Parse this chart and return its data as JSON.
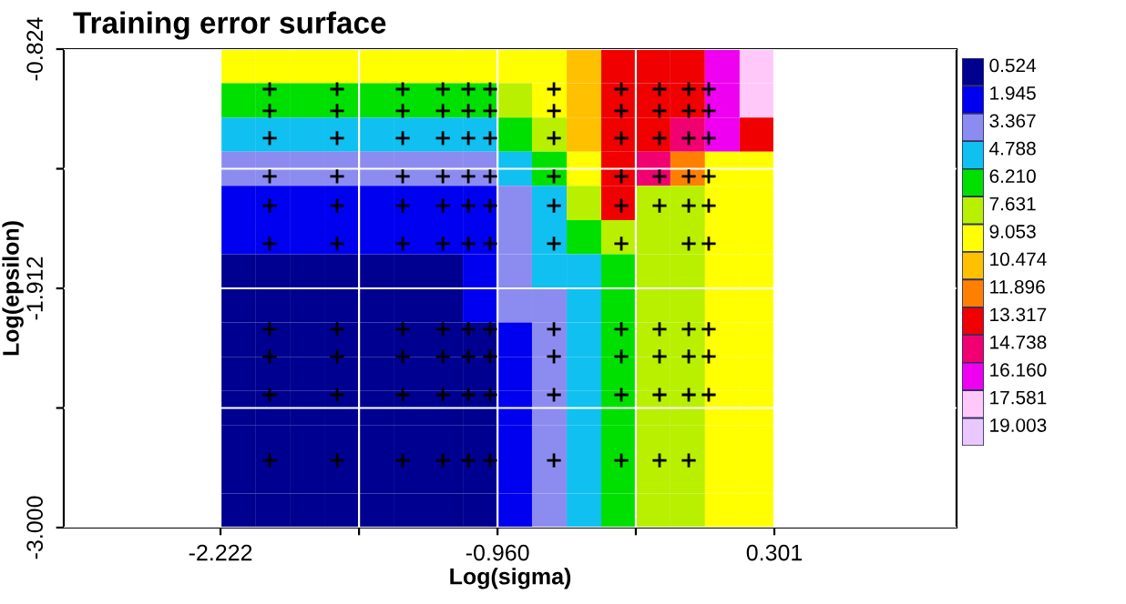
{
  "chart_data": {
    "type": "heatmap",
    "title": "Training error surface",
    "xlabel": "Log(sigma)",
    "ylabel": "Log(epsilon)",
    "x": [
      -2.143,
      -1.985,
      -1.828,
      -1.67,
      -1.512,
      -1.355,
      -1.197,
      -1.039,
      -0.882,
      -0.724,
      -0.566,
      -0.409,
      -0.251,
      -0.094,
      0.064,
      0.222
    ],
    "y": [
      -0.902,
      -1.057,
      -1.213,
      -1.368,
      -1.524,
      -1.679,
      -1.835,
      -1.99,
      -2.145,
      -2.301,
      -2.456,
      -2.612,
      -2.767,
      -2.922
    ],
    "cells": [
      [
        9.8,
        9.8,
        9.8,
        9.8,
        9.8,
        9.8,
        9.8,
        9.8,
        9.8,
        9.8,
        11.2,
        14.0,
        14.0,
        14.0,
        16.9,
        18.3
      ],
      [
        6.9,
        6.9,
        6.9,
        6.9,
        6.9,
        6.9,
        6.9,
        6.9,
        8.3,
        9.8,
        11.2,
        14.0,
        14.0,
        14.0,
        16.9,
        18.3
      ],
      [
        5.5,
        5.5,
        5.5,
        5.5,
        5.5,
        5.5,
        5.5,
        5.5,
        6.9,
        8.3,
        11.2,
        14.0,
        14.0,
        15.4,
        16.9,
        14.0
      ],
      [
        4.1,
        4.1,
        4.1,
        4.1,
        4.1,
        4.1,
        4.1,
        4.1,
        5.5,
        6.9,
        9.8,
        14.0,
        15.4,
        12.6,
        9.8,
        9.8
      ],
      [
        2.7,
        2.7,
        2.7,
        2.7,
        2.7,
        2.7,
        2.7,
        2.7,
        4.1,
        5.5,
        8.3,
        14.0,
        8.3,
        8.3,
        9.8,
        9.8
      ],
      [
        2.7,
        2.7,
        2.7,
        2.7,
        2.7,
        2.7,
        2.7,
        2.7,
        4.1,
        5.5,
        6.9,
        8.3,
        8.3,
        8.3,
        9.8,
        9.8
      ],
      [
        1.2,
        1.2,
        1.2,
        1.2,
        1.2,
        1.2,
        1.2,
        2.7,
        4.1,
        5.5,
        5.5,
        6.9,
        8.3,
        8.3,
        9.8,
        9.8
      ],
      [
        1.2,
        1.2,
        1.2,
        1.2,
        1.2,
        1.2,
        1.2,
        2.7,
        4.1,
        4.1,
        5.5,
        6.9,
        8.3,
        8.3,
        9.8,
        9.8
      ],
      [
        1.2,
        1.2,
        1.2,
        1.2,
        1.2,
        1.2,
        1.2,
        1.2,
        2.7,
        4.1,
        5.5,
        6.9,
        8.3,
        8.3,
        9.8,
        9.8
      ],
      [
        1.2,
        1.2,
        1.2,
        1.2,
        1.2,
        1.2,
        1.2,
        1.2,
        2.7,
        4.1,
        5.5,
        6.9,
        8.3,
        8.3,
        9.8,
        9.8
      ],
      [
        1.2,
        1.2,
        1.2,
        1.2,
        1.2,
        1.2,
        1.2,
        1.2,
        2.7,
        4.1,
        5.5,
        6.9,
        8.3,
        8.3,
        9.8,
        9.8
      ],
      [
        1.2,
        1.2,
        1.2,
        1.2,
        1.2,
        1.2,
        1.2,
        1.2,
        2.7,
        4.1,
        5.5,
        6.9,
        8.3,
        8.3,
        9.8,
        9.8
      ],
      [
        1.2,
        1.2,
        1.2,
        1.2,
        1.2,
        1.2,
        1.2,
        1.2,
        2.7,
        4.1,
        5.5,
        6.9,
        8.3,
        8.3,
        9.8,
        9.8
      ],
      [
        1.2,
        1.2,
        1.2,
        1.2,
        1.2,
        1.2,
        1.2,
        1.2,
        2.7,
        4.1,
        5.5,
        6.9,
        8.3,
        8.3,
        9.8,
        9.8
      ]
    ],
    "colors": [
      "#000090",
      "#0000f0",
      "#8c8cf0",
      "#10c0f0",
      "#00e000",
      "#b8f000",
      "#ffff00",
      "#ffc000",
      "#ff8000",
      "#f00000",
      "#f00070",
      "#f000f0",
      "#ffc8f8",
      "#e8c8ff"
    ],
    "clim": [
      0.524,
      20.424
    ],
    "cticks": [
      0.524,
      1.945,
      3.367,
      4.788,
      {
        "value": 6.21,
        "label": "6.210"
      },
      7.631,
      9.053,
      10.474,
      11.896,
      13.317,
      14.738,
      {
        "value": 16.16,
        "label": "16.160"
      },
      17.581,
      19.003
    ],
    "series": [
      {
        "type": "scatter",
        "color": "#000000",
        "x": [
          -1.998,
          -1.691,
          -1.392,
          -1.209,
          -1.093,
          -0.994,
          -0.703,
          -0.396,
          -0.222,
          -0.089,
          0.002,
          -1.998,
          -1.691,
          -1.392,
          -1.209,
          -1.093,
          -0.994,
          -0.703,
          -0.396,
          -0.222,
          -0.089,
          0.002,
          -1.998,
          -1.691,
          -1.392,
          -1.209,
          -1.093,
          -0.994,
          -0.703,
          -0.396,
          -0.222,
          -0.089,
          0.002,
          -1.998,
          -1.691,
          -1.392,
          -1.209,
          -1.093,
          -0.994,
          -0.703,
          -0.396,
          -0.222,
          -0.089,
          0.002,
          -1.998,
          -1.691,
          -1.392,
          -1.209,
          -1.093,
          -0.994,
          -0.703,
          -0.396,
          -0.222,
          -0.089,
          0.002,
          -1.998,
          -1.691,
          -1.392,
          -1.209,
          -1.093,
          -0.994,
          -0.703,
          -0.396,
          -0.089,
          0.002,
          -1.998,
          -1.691,
          -1.392,
          -1.209,
          -1.093,
          -0.994,
          -0.703,
          -0.396,
          -0.222,
          -0.089,
          0.002,
          -1.998,
          -1.691,
          -1.392,
          -1.209,
          -1.093,
          -0.994,
          -0.703,
          -0.396,
          -0.222,
          -0.089,
          0.002,
          -1.998,
          -1.691,
          -1.392,
          -1.209,
          -1.093,
          -0.994,
          -0.703,
          -0.396,
          -0.222,
          -0.089,
          0.002,
          -1.998,
          -1.691,
          -1.392,
          -1.209,
          -1.093,
          -0.994,
          -0.703,
          -0.396,
          -0.222,
          -0.089
        ],
        "values": [
          -1.006,
          -1.006,
          -1.006,
          -1.006,
          -1.006,
          -1.006,
          -1.006,
          -1.006,
          -1.006,
          -1.006,
          -1.006,
          -1.105,
          -1.105,
          -1.105,
          -1.105,
          -1.105,
          -1.105,
          -1.105,
          -1.105,
          -1.105,
          -1.105,
          -1.105,
          -1.229,
          -1.229,
          -1.229,
          -1.229,
          -1.229,
          -1.229,
          -1.229,
          -1.229,
          -1.229,
          -1.229,
          -1.229,
          -1.403,
          -1.403,
          -1.403,
          -1.403,
          -1.403,
          -1.403,
          -1.403,
          -1.403,
          -1.403,
          -1.403,
          -1.403,
          -1.536,
          -1.536,
          -1.536,
          -1.536,
          -1.536,
          -1.536,
          -1.536,
          -1.536,
          -1.536,
          -1.536,
          -1.536,
          -1.709,
          -1.709,
          -1.709,
          -1.709,
          -1.709,
          -1.709,
          -1.709,
          -1.709,
          -1.709,
          -1.709,
          -2.098,
          -2.098,
          -2.098,
          -2.098,
          -2.098,
          -2.098,
          -2.098,
          -2.098,
          -2.098,
          -2.098,
          -2.098,
          -2.222,
          -2.222,
          -2.222,
          -2.222,
          -2.222,
          -2.222,
          -2.222,
          -2.222,
          -2.222,
          -2.222,
          -2.222,
          -2.396,
          -2.396,
          -2.396,
          -2.396,
          -2.396,
          -2.396,
          -2.396,
          -2.396,
          -2.396,
          -2.396,
          -2.396,
          -2.694,
          -2.694,
          -2.694,
          -2.694,
          -2.694,
          -2.694,
          -2.694,
          -2.694,
          -2.694,
          -2.694
        ]
      }
    ],
    "marker": "cross",
    "xlim": [
      -2.936,
      1.131
    ],
    "ylim": [
      -3.0,
      -0.824
    ],
    "xticks": [
      -2.222,
      {
        "value": -1.591,
        "label": null
      },
      {
        "value": -0.96,
        "label": "-0.960"
      },
      {
        "value": -0.33,
        "label": null
      },
      0.301
    ],
    "yticks": [
      {
        "value": -3.0,
        "label": "-3.000"
      },
      {
        "value": -2.456,
        "label": null
      },
      -1.912,
      {
        "value": -1.368,
        "label": null
      },
      -0.824
    ],
    "grid": true
  }
}
